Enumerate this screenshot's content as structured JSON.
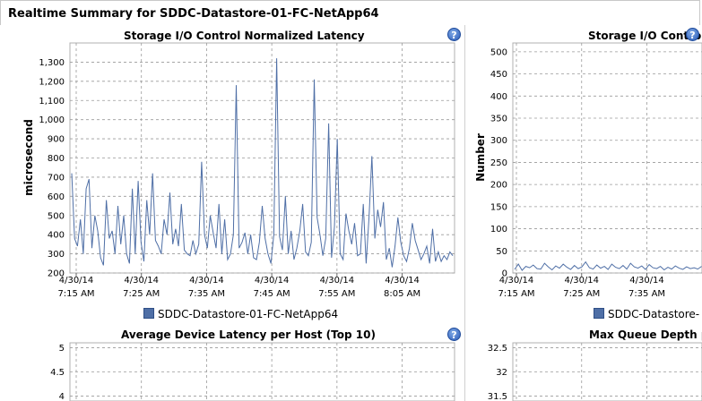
{
  "page": {
    "title": "Realtime Summary for SDDC-Datastore-01-FC-NetApp64"
  },
  "help_glyph": "?",
  "icons": {
    "help": "help-question-icon"
  },
  "colors": {
    "series": "#4f6fa6",
    "grid": "#9a9a9a"
  },
  "legend": {
    "left": "SDDC-Datastore-01-FC-NetApp64",
    "right": "SDDC-Datastore-"
  },
  "chart_data": [
    {
      "type": "line",
      "title": "Storage I/O Control Normalized Latency",
      "ylabel": "microsecond",
      "ylim": [
        200,
        1400
      ],
      "yticks": [
        "200",
        "300",
        "400",
        "500",
        "600",
        "700",
        "800",
        "900",
        "1,000",
        "1,100",
        "1,200",
        "1,300"
      ],
      "xticks": [
        {
          "date": "4/30/14",
          "time": "7:15 AM"
        },
        {
          "date": "4/30/14",
          "time": "7:25 AM"
        },
        {
          "date": "4/30/14",
          "time": "7:35 AM"
        },
        {
          "date": "4/30/14",
          "time": "7:45 AM"
        },
        {
          "date": "4/30/14",
          "time": "7:55 AM"
        },
        {
          "date": "4/30/14",
          "time": "8:05 AM"
        }
      ],
      "grid": true,
      "series": [
        {
          "name": "SDDC-Datastore-01-FC-NetApp64",
          "values": [
            720,
            380,
            340,
            480,
            300,
            640,
            690,
            330,
            500,
            420,
            280,
            240,
            580,
            380,
            420,
            300,
            550,
            350,
            500,
            300,
            250,
            640,
            300,
            680,
            360,
            260,
            580,
            400,
            720,
            370,
            340,
            300,
            480,
            400,
            620,
            350,
            430,
            340,
            560,
            320,
            300,
            290,
            370,
            300,
            350,
            780,
            400,
            330,
            500,
            410,
            330,
            560,
            300,
            480,
            270,
            300,
            400,
            1180,
            330,
            360,
            410,
            300,
            400,
            280,
            270,
            360,
            550,
            380,
            300,
            250,
            400,
            1320,
            390,
            320,
            600,
            300,
            420,
            270,
            330,
            420,
            560,
            310,
            290,
            360,
            1210,
            490,
            400,
            290,
            380,
            980,
            280,
            440,
            900,
            300,
            270,
            510,
            420,
            350,
            460,
            290,
            300,
            560,
            250,
            490,
            810,
            380,
            530,
            440,
            570,
            270,
            330,
            230,
            340,
            490,
            360,
            290,
            260,
            330,
            460,
            370,
            320,
            270,
            300,
            340,
            250,
            430,
            260,
            310,
            260,
            290,
            270,
            310,
            290
          ]
        }
      ]
    },
    {
      "type": "line",
      "title": "Storage I/O Control",
      "ylabel": "Number",
      "ylim": [
        0,
        520
      ],
      "yticks": [
        "0",
        "50",
        "100",
        "150",
        "200",
        "250",
        "300",
        "350",
        "400",
        "450",
        "500"
      ],
      "xticks": [
        {
          "date": "4/30/14",
          "time": "7:15 AM"
        },
        {
          "date": "4/30/14",
          "time": "7:25 AM"
        },
        {
          "date": "4/30/14",
          "time": "7:35 AM"
        }
      ],
      "grid": true,
      "series": [
        {
          "name": "SDDC-Datastore-",
          "values": [
            8,
            20,
            6,
            15,
            12,
            18,
            10,
            9,
            22,
            14,
            7,
            16,
            11,
            20,
            13,
            8,
            17,
            10,
            14,
            25,
            12,
            9,
            18,
            11,
            15,
            8,
            20,
            13,
            10,
            17,
            9,
            22,
            14,
            11,
            16,
            8,
            19,
            12,
            10,
            15,
            7,
            13,
            9,
            16,
            11,
            8,
            14,
            10,
            12,
            9,
            15,
            11,
            8,
            13
          ]
        }
      ]
    },
    {
      "type": "line",
      "title": "Average Device Latency per Host (Top 10)",
      "ylim": [
        3.9,
        5.1
      ],
      "yticks": [
        "4",
        "4.5",
        "5"
      ],
      "grid": true
    },
    {
      "type": "line",
      "title": "Max Queue Depth pe",
      "ylim": [
        31.4,
        32.6
      ],
      "yticks": [
        "31.5",
        "32",
        "32.5"
      ],
      "grid": true
    }
  ]
}
